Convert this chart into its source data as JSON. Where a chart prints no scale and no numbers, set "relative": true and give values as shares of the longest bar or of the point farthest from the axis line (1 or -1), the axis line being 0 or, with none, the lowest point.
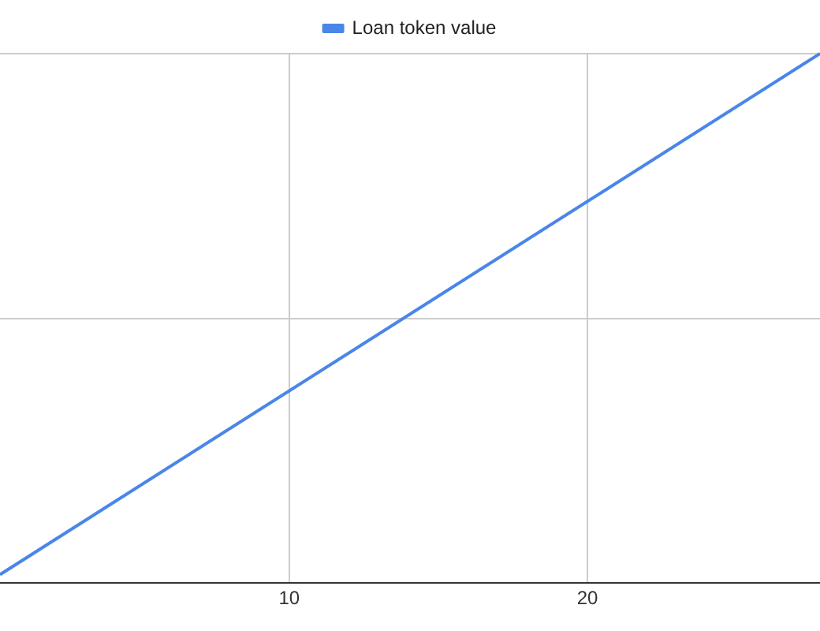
{
  "chart_data": {
    "type": "line",
    "relative": true,
    "x": [
      0.3,
      27.8
    ],
    "series": [
      {
        "name": "Loan token value",
        "color": "#4a86e8",
        "values": [
          0.016,
          1
        ]
      }
    ],
    "xlim": [
      0.3,
      27.8
    ],
    "xticks": [
      10,
      20
    ],
    "grid": true,
    "legend": "top",
    "marker": "none",
    "line_style": "solid"
  }
}
